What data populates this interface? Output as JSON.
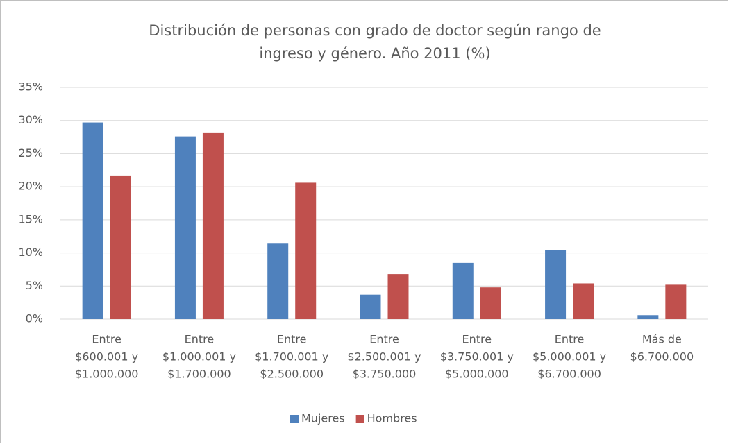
{
  "chart_data": {
    "type": "bar",
    "title": [
      "Distribución de personas con grado de doctor según rango de",
      "ingreso y género. Año 2011 (%)"
    ],
    "categories": [
      [
        "Entre",
        "$600.001 y",
        "$1.000.000"
      ],
      [
        "Entre",
        "$1.000.001 y",
        "$1.700.000"
      ],
      [
        "Entre",
        "$1.700.001 y",
        "$2.500.000"
      ],
      [
        "Entre",
        "$2.500.001 y",
        "$3.750.000"
      ],
      [
        "Entre",
        "$3.750.001 y",
        "$5.000.000"
      ],
      [
        "Entre",
        "$5.000.001 y",
        "$6.700.000"
      ],
      [
        "Más de",
        "$6.700.000"
      ]
    ],
    "series": [
      {
        "name": "Mujeres",
        "color": "#4f81bd",
        "values": [
          29.7,
          27.6,
          11.5,
          3.7,
          8.5,
          10.4,
          0.6
        ]
      },
      {
        "name": "Hombres",
        "color": "#c0504d",
        "values": [
          21.7,
          28.2,
          20.6,
          6.8,
          4.8,
          5.4,
          5.2
        ]
      }
    ],
    "ylim": [
      0,
      35
    ],
    "yticks": [
      {
        "value": 0,
        "label": "0%"
      },
      {
        "value": 5,
        "label": "5%"
      },
      {
        "value": 10,
        "label": "10%"
      },
      {
        "value": 15,
        "label": "15%"
      },
      {
        "value": 20,
        "label": "20%"
      },
      {
        "value": 25,
        "label": "25%"
      },
      {
        "value": 30,
        "label": "30%"
      },
      {
        "value": 35,
        "label": "35%"
      }
    ],
    "grid": true,
    "legend": "bottom"
  }
}
